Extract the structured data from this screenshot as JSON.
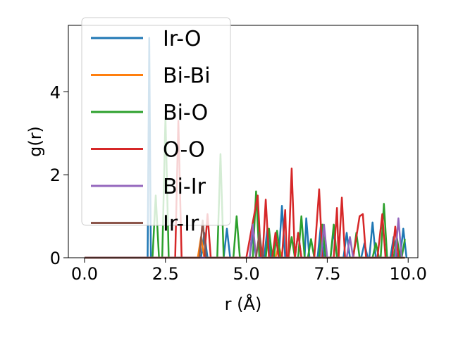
{
  "chart_data": {
    "type": "line",
    "title": "",
    "xlabel": "r (Å)",
    "ylabel": "g(r)",
    "xlim": [
      -0.5,
      10.3
    ],
    "ylim": [
      0,
      5.6
    ],
    "xticks": [
      0.0,
      2.5,
      5.0,
      7.5,
      10.0
    ],
    "xtick_labels": [
      "0.0",
      "2.5",
      "5.0",
      "7.5",
      "10.0"
    ],
    "yticks": [
      0,
      2,
      4
    ],
    "ytick_labels": [
      "0",
      "2",
      "4"
    ],
    "grid": false,
    "legend_position": "upper-left",
    "series": [
      {
        "name": "Ir-O",
        "color": "#1f77b4",
        "points": [
          [
            0,
            0
          ],
          [
            1.95,
            0
          ],
          [
            2.0,
            5.3
          ],
          [
            2.05,
            0
          ],
          [
            3.6,
            0
          ],
          [
            3.7,
            0.6
          ],
          [
            3.8,
            0
          ],
          [
            4.3,
            0
          ],
          [
            4.4,
            0.7
          ],
          [
            4.5,
            0
          ],
          [
            5.1,
            0
          ],
          [
            5.2,
            0.55
          ],
          [
            5.3,
            0
          ],
          [
            5.55,
            0
          ],
          [
            5.65,
            0.7
          ],
          [
            5.75,
            0
          ],
          [
            6.0,
            0
          ],
          [
            6.1,
            1.25
          ],
          [
            6.2,
            0
          ],
          [
            6.5,
            0
          ],
          [
            6.6,
            0.6
          ],
          [
            6.7,
            0
          ],
          [
            6.8,
            0
          ],
          [
            6.85,
            0.95
          ],
          [
            6.95,
            0
          ],
          [
            7.2,
            0
          ],
          [
            7.3,
            0.75
          ],
          [
            7.4,
            0
          ],
          [
            7.6,
            0
          ],
          [
            7.7,
            0.65
          ],
          [
            7.8,
            0
          ],
          [
            8.0,
            0
          ],
          [
            8.1,
            0.6
          ],
          [
            8.2,
            0
          ],
          [
            8.55,
            0
          ],
          [
            8.65,
            0.35
          ],
          [
            8.75,
            0
          ],
          [
            8.8,
            0
          ],
          [
            8.9,
            0.85
          ],
          [
            9.0,
            0
          ],
          [
            9.45,
            0
          ],
          [
            9.55,
            0.5
          ],
          [
            9.65,
            0
          ],
          [
            9.75,
            0
          ],
          [
            9.85,
            0.7
          ],
          [
            9.95,
            0
          ]
        ]
      },
      {
        "name": "Bi-Bi",
        "color": "#ff7f0e",
        "points": [
          [
            0,
            0
          ],
          [
            3.5,
            0
          ],
          [
            3.6,
            0.5
          ],
          [
            3.7,
            0
          ],
          [
            5.9,
            0
          ],
          [
            6.0,
            0.3
          ],
          [
            6.1,
            0
          ],
          [
            9.9,
            0
          ]
        ]
      },
      {
        "name": "Bi-O",
        "color": "#2ca02c",
        "points": [
          [
            0,
            0
          ],
          [
            2.1,
            0
          ],
          [
            2.2,
            1.5
          ],
          [
            2.3,
            0
          ],
          [
            2.4,
            0
          ],
          [
            2.5,
            3.4
          ],
          [
            2.6,
            0
          ],
          [
            4.1,
            0
          ],
          [
            4.2,
            2.5
          ],
          [
            4.3,
            0
          ],
          [
            4.6,
            0
          ],
          [
            4.7,
            1.0
          ],
          [
            4.8,
            0
          ],
          [
            5.2,
            0
          ],
          [
            5.3,
            1.6
          ],
          [
            5.4,
            0
          ],
          [
            5.6,
            0
          ],
          [
            5.7,
            0.7
          ],
          [
            5.8,
            0
          ],
          [
            5.85,
            0
          ],
          [
            5.95,
            0.65
          ],
          [
            6.05,
            0
          ],
          [
            6.3,
            0
          ],
          [
            6.4,
            0.5
          ],
          [
            6.5,
            0
          ],
          [
            6.6,
            0
          ],
          [
            6.7,
            1.0
          ],
          [
            6.8,
            0
          ],
          [
            6.9,
            0
          ],
          [
            7.0,
            0.45
          ],
          [
            7.1,
            0
          ],
          [
            7.25,
            0
          ],
          [
            7.35,
            0.8
          ],
          [
            7.45,
            0
          ],
          [
            7.6,
            0
          ],
          [
            7.7,
            0.8
          ],
          [
            7.8,
            0
          ],
          [
            8.3,
            0
          ],
          [
            8.4,
            0.6
          ],
          [
            8.5,
            0
          ],
          [
            8.9,
            0
          ],
          [
            9.0,
            0.35
          ],
          [
            9.1,
            0
          ],
          [
            9.15,
            0
          ],
          [
            9.25,
            1.3
          ],
          [
            9.35,
            0
          ],
          [
            9.55,
            0
          ],
          [
            9.65,
            0.5
          ],
          [
            9.75,
            0
          ],
          [
            9.8,
            0
          ],
          [
            9.9,
            0.45
          ]
        ]
      },
      {
        "name": "O-O",
        "color": "#d62728",
        "points": [
          [
            0,
            0
          ],
          [
            2.8,
            0
          ],
          [
            2.9,
            3.3
          ],
          [
            3.0,
            0
          ],
          [
            3.7,
            0
          ],
          [
            3.8,
            1.05
          ],
          [
            3.9,
            0
          ],
          [
            5.0,
            0
          ],
          [
            5.35,
            1.5
          ],
          [
            5.45,
            0
          ],
          [
            5.5,
            0
          ],
          [
            5.6,
            1.4
          ],
          [
            5.7,
            0
          ],
          [
            5.8,
            0
          ],
          [
            5.9,
            0.6
          ],
          [
            6.0,
            0
          ],
          [
            6.1,
            0
          ],
          [
            6.2,
            1.15
          ],
          [
            6.25,
            0
          ],
          [
            6.3,
            0
          ],
          [
            6.4,
            2.15
          ],
          [
            6.5,
            0
          ],
          [
            6.6,
            0.6
          ],
          [
            6.7,
            0
          ],
          [
            7.1,
            0
          ],
          [
            7.25,
            1.65
          ],
          [
            7.35,
            0
          ],
          [
            7.7,
            0
          ],
          [
            7.8,
            1.2
          ],
          [
            7.85,
            0
          ],
          [
            7.95,
            1.45
          ],
          [
            8.05,
            0
          ],
          [
            8.3,
            0
          ],
          [
            8.5,
            1.0
          ],
          [
            8.6,
            1.05
          ],
          [
            8.7,
            0
          ],
          [
            9.05,
            0
          ],
          [
            9.2,
            1.05
          ],
          [
            9.3,
            0
          ],
          [
            9.5,
            0
          ],
          [
            9.6,
            0.75
          ],
          [
            9.7,
            0
          ]
        ]
      },
      {
        "name": "Bi-Ir",
        "color": "#9467bd",
        "points": [
          [
            0,
            0
          ],
          [
            5.1,
            0
          ],
          [
            5.2,
            0.8
          ],
          [
            5.3,
            0
          ],
          [
            7.3,
            0
          ],
          [
            7.4,
            0.8
          ],
          [
            7.5,
            0
          ],
          [
            8.1,
            0
          ],
          [
            8.2,
            0.5
          ],
          [
            8.3,
            0
          ],
          [
            9.6,
            0
          ],
          [
            9.7,
            0.95
          ],
          [
            9.8,
            0
          ]
        ]
      },
      {
        "name": "Ir-Ir",
        "color": "#8c564b",
        "points": [
          [
            0,
            0
          ],
          [
            3.55,
            0
          ],
          [
            3.65,
            0.9
          ],
          [
            3.75,
            0
          ],
          [
            5.0,
            0
          ],
          [
            5.3,
            0
          ],
          [
            5.4,
            0.6
          ],
          [
            5.5,
            0
          ],
          [
            9.9,
            0
          ]
        ]
      }
    ]
  }
}
